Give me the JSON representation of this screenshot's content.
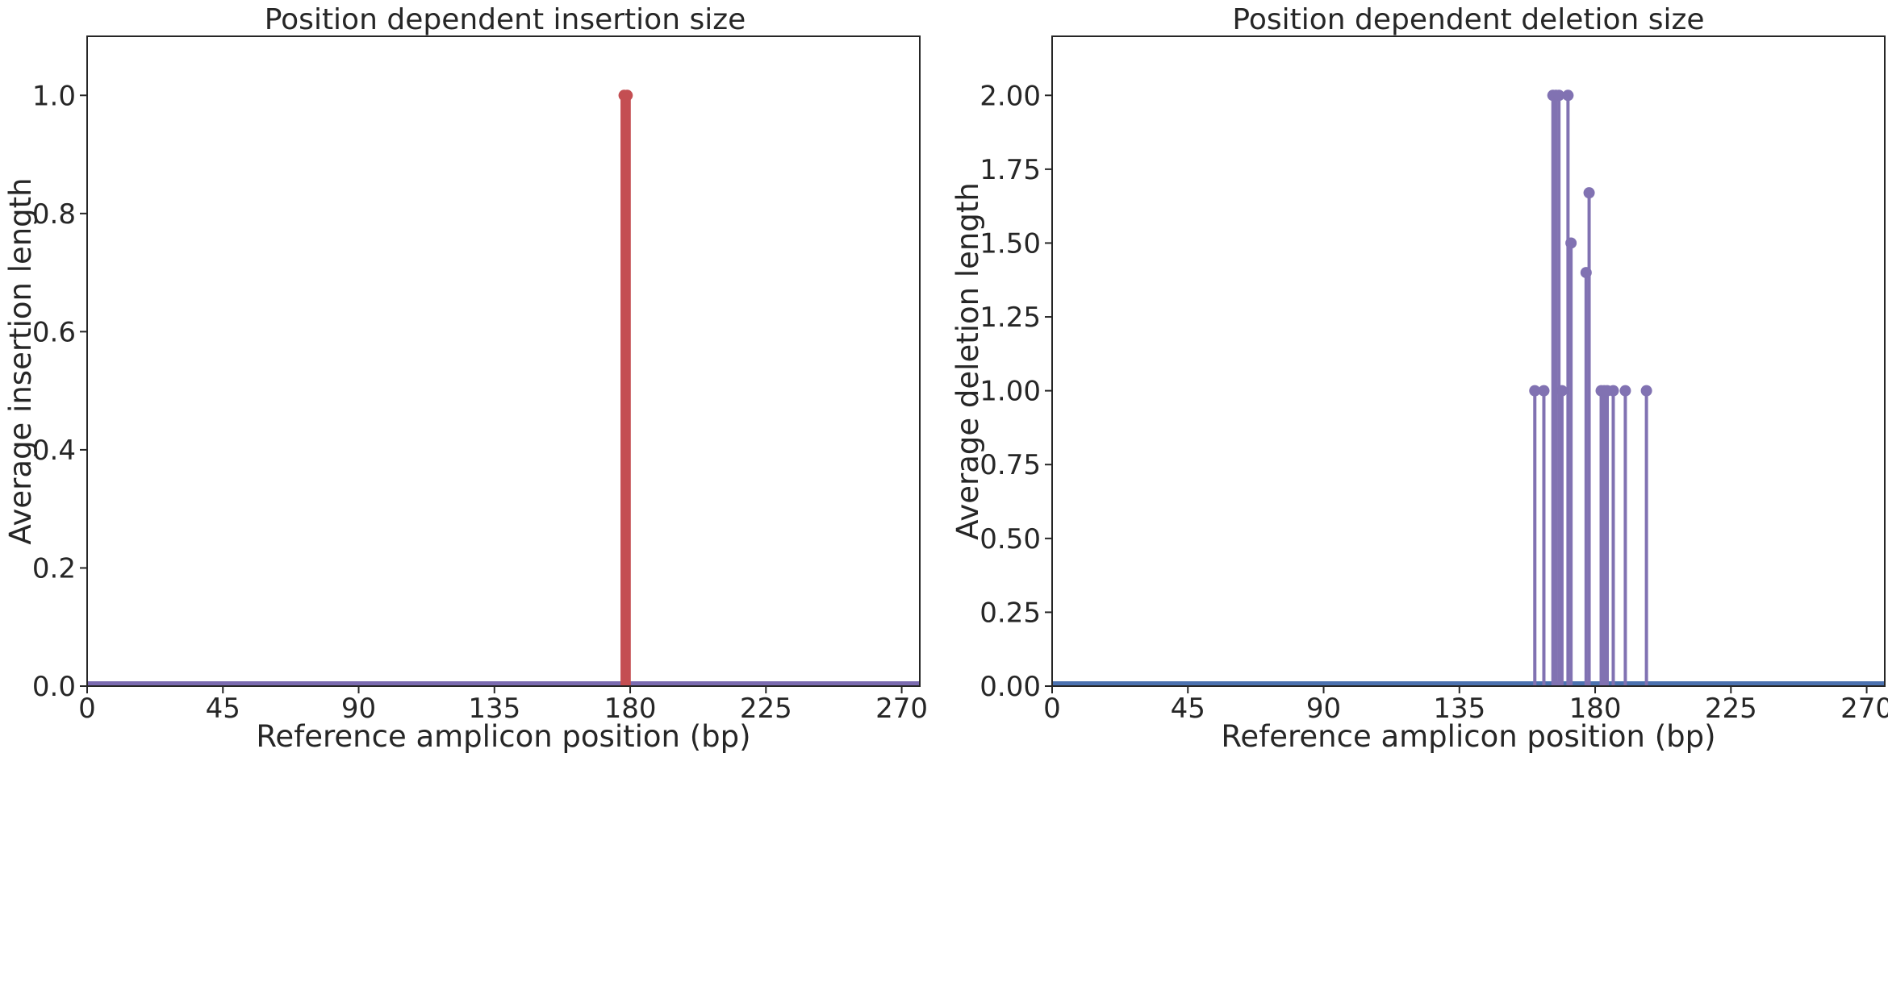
{
  "chart_data": [
    {
      "type": "stem",
      "title": "Position dependent insertion size",
      "xlabel": "Reference amplicon position (bp)",
      "ylabel": "Average insertion length",
      "xlim": [
        0,
        276
      ],
      "ylim": [
        0,
        1.1
      ],
      "xticks": [
        0,
        45,
        90,
        135,
        180,
        225,
        270
      ],
      "xtick_labels": [
        "0",
        "45",
        "90",
        "135",
        "180",
        "225",
        "270"
      ],
      "yticks": [
        0,
        0.2,
        0.4,
        0.6,
        0.8,
        1.0
      ],
      "ytick_labels": [
        "0.0",
        "0.2",
        "0.4",
        "0.6",
        "0.8",
        "1.0"
      ],
      "grid": false,
      "baseline_color": "#7b6bb0",
      "series": [
        {
          "color": "#c44e52",
          "stem_width": 9,
          "points": [
            {
              "x": 178,
              "y": 1.0
            },
            {
              "x": 179,
              "y": 1.0
            }
          ]
        }
      ]
    },
    {
      "type": "stem",
      "title": "Position dependent deletion size",
      "xlabel": "Reference amplicon position (bp)",
      "ylabel": "Average deletion length",
      "xlim": [
        0,
        276
      ],
      "ylim": [
        0,
        2.2
      ],
      "xticks": [
        0,
        45,
        90,
        135,
        180,
        225,
        270
      ],
      "xtick_labels": [
        "0",
        "45",
        "90",
        "135",
        "180",
        "225",
        "270"
      ],
      "yticks": [
        0,
        0.25,
        0.5,
        0.75,
        1.0,
        1.25,
        1.5,
        1.75,
        2.0
      ],
      "ytick_labels": [
        "0.00",
        "0.25",
        "0.50",
        "0.75",
        "1.00",
        "1.25",
        "1.50",
        "1.75",
        "2.00"
      ],
      "grid": false,
      "baseline_color": "#4c72b0",
      "series": [
        {
          "color": "#8172b2",
          "stem_width": 4,
          "points": [
            {
              "x": 160,
              "y": 1.0
            },
            {
              "x": 163,
              "y": 1.0
            },
            {
              "x": 166,
              "y": 2.0
            },
            {
              "x": 167,
              "y": 2.0
            },
            {
              "x": 168,
              "y": 2.0
            },
            {
              "x": 169,
              "y": 1.0
            },
            {
              "x": 171,
              "y": 2.0
            },
            {
              "x": 172,
              "y": 1.5
            },
            {
              "x": 177,
              "y": 1.4
            },
            {
              "x": 178,
              "y": 1.67
            },
            {
              "x": 182,
              "y": 1.0
            },
            {
              "x": 183,
              "y": 1.0
            },
            {
              "x": 184,
              "y": 1.0
            },
            {
              "x": 186,
              "y": 1.0
            },
            {
              "x": 190,
              "y": 1.0
            },
            {
              "x": 197,
              "y": 1.0
            }
          ]
        }
      ]
    }
  ]
}
